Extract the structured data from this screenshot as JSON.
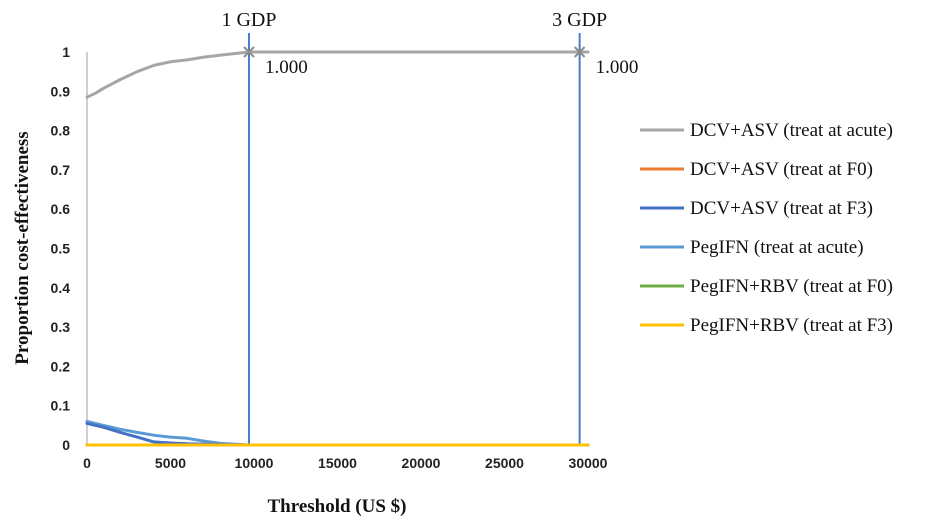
{
  "chart_data": {
    "type": "line",
    "title": "",
    "xlabel": "Threshold (US $)",
    "ylabel": "Proportion cost-effectiveness",
    "xlim": [
      0,
      30000
    ],
    "ylim": [
      0,
      1
    ],
    "x_ticks": [
      0,
      5000,
      10000,
      15000,
      20000,
      25000,
      30000
    ],
    "y_ticks": [
      0,
      0.1,
      0.2,
      0.3,
      0.4,
      0.5,
      0.6,
      0.7,
      0.8,
      0.9,
      1
    ],
    "y_tick_labels": [
      "0",
      "0.1",
      "0.2",
      "0.3",
      "0.4",
      "0.5",
      "0.6",
      "0.7",
      "0.8",
      "0.9",
      "1"
    ],
    "grid": false,
    "legend_position": "right",
    "reference_lines": [
      {
        "label": "1 GDP",
        "x": 9700,
        "color": "#4a7dc9",
        "value_label": "1.000",
        "value": 1.0
      },
      {
        "label": "3 GDP",
        "x": 29500,
        "color": "#4a7dc9",
        "value_label": "1.000",
        "value": 1.0
      }
    ],
    "series": [
      {
        "name": "DCV+ASV (treat at acute)",
        "color": "#a6a6a6",
        "points": [
          [
            0,
            0.885
          ],
          [
            500,
            0.895
          ],
          [
            1000,
            0.908
          ],
          [
            2000,
            0.93
          ],
          [
            3000,
            0.95
          ],
          [
            4000,
            0.966
          ],
          [
            5000,
            0.975
          ],
          [
            6000,
            0.98
          ],
          [
            7000,
            0.987
          ],
          [
            8000,
            0.992
          ],
          [
            9700,
            1.0
          ],
          [
            15000,
            1.0
          ],
          [
            20000,
            1.0
          ],
          [
            25000,
            1.0
          ],
          [
            29500,
            1.0
          ],
          [
            30000,
            1.0
          ]
        ]
      },
      {
        "name": "DCV+ASV (treat at F0)",
        "color": "#ed7d31",
        "points": [
          [
            0,
            0.0
          ],
          [
            30000,
            0.0
          ]
        ]
      },
      {
        "name": "DCV+ASV (treat at F3)",
        "color": "#4472c4",
        "points": [
          [
            0,
            0.055
          ],
          [
            1000,
            0.045
          ],
          [
            2000,
            0.032
          ],
          [
            3000,
            0.02
          ],
          [
            4000,
            0.008
          ],
          [
            5000,
            0.005
          ],
          [
            6000,
            0.003
          ],
          [
            8000,
            0.001
          ],
          [
            9700,
            0.0
          ],
          [
            30000,
            0.0
          ]
        ]
      },
      {
        "name": "PegIFN (treat at acute)",
        "color": "#5b9bd5",
        "points": [
          [
            0,
            0.06
          ],
          [
            1000,
            0.05
          ],
          [
            2000,
            0.04
          ],
          [
            3000,
            0.032
          ],
          [
            4000,
            0.025
          ],
          [
            5000,
            0.02
          ],
          [
            6000,
            0.017
          ],
          [
            7000,
            0.01
          ],
          [
            8000,
            0.004
          ],
          [
            9700,
            0.0
          ],
          [
            30000,
            0.0
          ]
        ]
      },
      {
        "name": "PegIFN+RBV (treat at F0)",
        "color": "#70ad47",
        "points": [
          [
            0,
            0.0
          ],
          [
            30000,
            0.0
          ]
        ]
      },
      {
        "name": "PegIFN+RBV (treat at F3)",
        "color": "#ffc000",
        "points": [
          [
            0,
            0.0
          ],
          [
            30000,
            0.0
          ]
        ]
      }
    ]
  }
}
